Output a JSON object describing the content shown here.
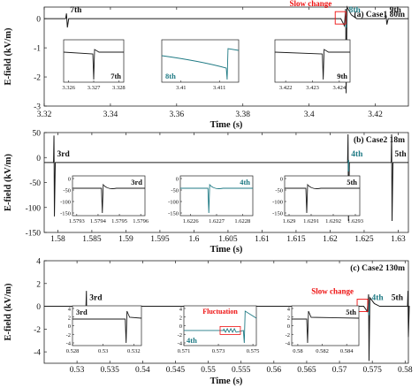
{
  "chart_data": [
    {
      "type": "line",
      "title": "(a) Case1 80m",
      "xlabel": "Time (s)",
      "ylabel": "E-field (kV/m)",
      "xlim": [
        3.32,
        3.43
      ],
      "ylim": [
        -3,
        0.4
      ],
      "xticks": [
        3.32,
        3.34,
        3.36,
        3.38,
        3.4,
        3.42
      ],
      "yticks": [
        0,
        -1,
        -2,
        -3
      ],
      "baseline": 0,
      "color": "#1b1b1b",
      "accent": "#1f7a84",
      "events": [
        {
          "label": "7th",
          "t": 3.327,
          "type": "bipolar_small",
          "amp": 0.3
        },
        {
          "label": "8th",
          "t": 3.4112,
          "type": "slow_then_spike",
          "amp": 1.6
        },
        {
          "label": "9th",
          "t": 3.4235,
          "type": "bipolar_small",
          "amp": 0.2
        }
      ],
      "annotations": [
        {
          "text": "Slow change",
          "t": 3.4095
        }
      ],
      "insets": [
        {
          "label": "7th",
          "xticks": [
            3.326,
            3.327,
            3.328
          ],
          "xlim": [
            3.3258,
            3.3282
          ],
          "event_t": 3.327,
          "shape": "sharp_down",
          "color": "#1b1b1b"
        },
        {
          "label": "8th",
          "xticks": [
            3.41,
            3.411
          ],
          "xlim": [
            3.4095,
            3.4115
          ],
          "event_t": 3.4112,
          "shape": "ramp_then_spike",
          "color": "#1f7a84"
        },
        {
          "label": "9th",
          "xticks": [
            3.422,
            3.423,
            3.424
          ],
          "xlim": [
            3.4216,
            3.4244
          ],
          "event_t": 3.4234,
          "shape": "sharp_down",
          "color": "#1b1b1b"
        }
      ]
    },
    {
      "type": "line",
      "title": "(b) Case2 18m",
      "xlabel": "Time (s)",
      "ylabel": "E-field (kV/m)",
      "xlim": [
        1.578,
        1.6315
      ],
      "ylim": [
        -150,
        50
      ],
      "xticks": [
        1.58,
        1.585,
        1.59,
        1.595,
        1.6,
        1.605,
        1.61,
        1.615,
        1.62,
        1.625,
        1.63
      ],
      "yticks": [
        50,
        0,
        -50,
        -100,
        -150
      ],
      "baseline": -10,
      "color": "#1b1b1b",
      "accent": "#1f7a84",
      "events": [
        {
          "label": "3rd",
          "t": 1.5795,
          "type": "big_spike",
          "amp": 120
        },
        {
          "label": "4th",
          "t": 1.6227,
          "type": "big_spike",
          "amp": 130
        },
        {
          "label": "5th",
          "t": 1.6291,
          "type": "big_spike",
          "amp": 130
        }
      ],
      "inset_yticks": [
        0,
        -50,
        -100,
        -150
      ],
      "insets": [
        {
          "label": "3rd",
          "xticks": [
            1.5793,
            1.5794,
            1.5795,
            1.5796
          ],
          "xlim": [
            1.57928,
            1.57962
          ],
          "event_t": 1.57942,
          "shape": "big_dip",
          "color": "#1b1b1b"
        },
        {
          "label": "4th",
          "xticks": [
            1.6226,
            1.6227,
            1.6228
          ],
          "xlim": [
            1.62256,
            1.62284
          ],
          "event_t": 1.62267,
          "shape": "big_dip",
          "color": "#1f7a84"
        },
        {
          "label": "5th",
          "xticks": [
            1.629,
            1.6291,
            1.6292,
            1.6293
          ],
          "xlim": [
            1.62898,
            1.62932
          ],
          "event_t": 1.62908,
          "shape": "big_dip",
          "color": "#1b1b1b"
        }
      ]
    },
    {
      "type": "line",
      "title": "(c) Case2 130m",
      "xlabel": "Time (s)",
      "ylabel": "E-field (kV/m)",
      "xlim": [
        0.525,
        0.5805
      ],
      "ylim": [
        -5,
        4
      ],
      "xticks": [
        0.53,
        0.535,
        0.54,
        0.545,
        0.55,
        0.555,
        0.56,
        0.565,
        0.57,
        0.575,
        0.58
      ],
      "yticks": [
        4,
        2,
        0,
        -2,
        -4
      ],
      "baseline": 0,
      "color": "#1b1b1b",
      "accent": "#1f7a84",
      "events": [
        {
          "label": "3rd",
          "t": 0.5315,
          "type": "big_spike",
          "amp": 3
        },
        {
          "label": "4th",
          "t": 0.5745,
          "type": "slow_then_spike",
          "amp": 3
        },
        {
          "label": "5th",
          "t": 0.5805,
          "type": "big_spike",
          "amp": 3
        }
      ],
      "annotations": [
        {
          "text": "Slow change",
          "t": 0.5735
        }
      ],
      "inset_yticks": [
        4,
        2,
        0,
        -2,
        -4
      ],
      "insets": [
        {
          "label": "3rd",
          "xticks": [
            0.528,
            0.53,
            0.532
          ],
          "xlim": [
            0.528,
            0.5325
          ],
          "event_t": 0.5315,
          "shape": "spike_recover",
          "color": "#1b1b1b"
        },
        {
          "label": "4th",
          "xticks": [
            0.571,
            0.573,
            0.575
          ],
          "xlim": [
            0.571,
            0.5752
          ],
          "event_t": 0.5745,
          "shape": "fluct_then_spike",
          "color": "#1f7a84",
          "annotation": "Fluctuation"
        },
        {
          "label": "5th",
          "xticks": [
            0.58,
            0.582,
            0.584
          ],
          "xlim": [
            0.5795,
            0.585
          ],
          "event_t": 0.5808,
          "shape": "spike_recover",
          "color": "#1b1b1b"
        }
      ]
    }
  ]
}
